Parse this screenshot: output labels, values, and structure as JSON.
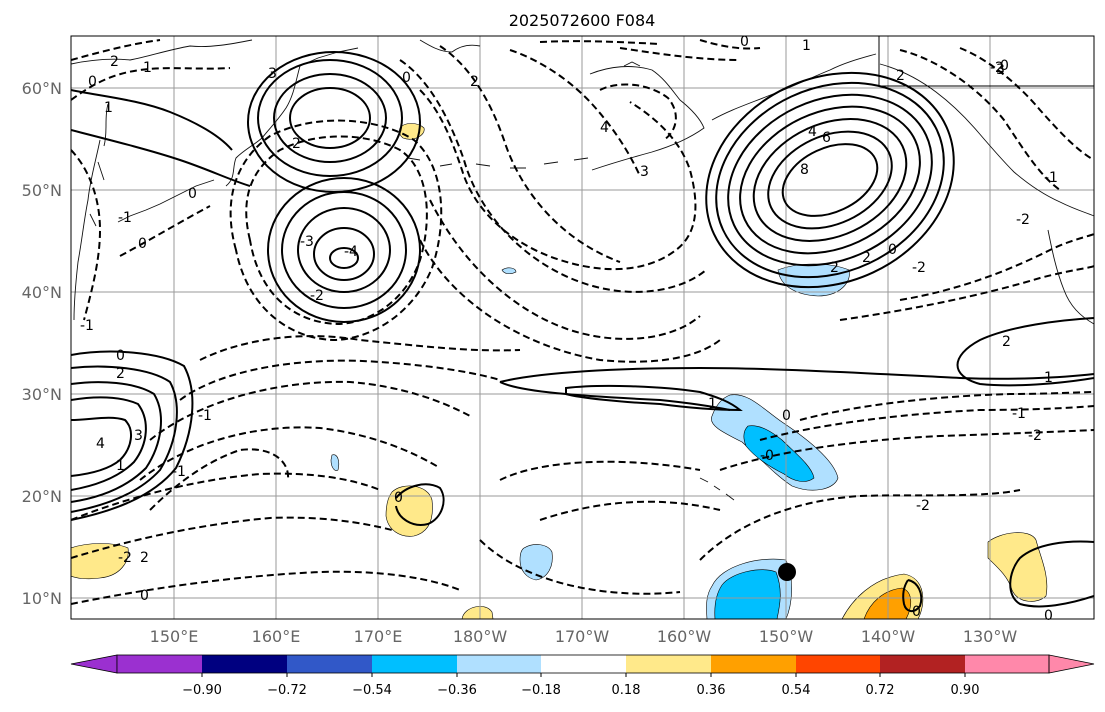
{
  "title": "2025072600 F084",
  "lat_labels": [
    "60°N",
    "50°N",
    "40°N",
    "30°N",
    "20°N",
    "10°N"
  ],
  "lon_labels": [
    "150°E",
    "160°E",
    "170°E",
    "180°W",
    "170°W",
    "160°W",
    "150°W",
    "140°W",
    "130°W"
  ],
  "colorbar": {
    "tick_labels": [
      "−0.90",
      "−0.72",
      "−0.54",
      "−0.36",
      "−0.18",
      "0.18",
      "0.36",
      "0.54",
      "0.72",
      "0.90"
    ],
    "colors": [
      "#9b30d0",
      "#000080",
      "#3158c8",
      "#00bfff",
      "#b0e0ff",
      "#ffffff",
      "#ffe98a",
      "#ffa000",
      "#ff4500",
      "#b22222",
      "#ff88aa"
    ]
  },
  "contour_labels": {
    "nw_a": "2",
    "nw_b": "1",
    "nw_c": "0",
    "nw_d": "1",
    "nw_e": "0",
    "low1_a": "3",
    "low1_b": "2",
    "low1_c": "0",
    "cen_a": "-3",
    "cen_b": "-4",
    "cen_c": "-2",
    "l_w1": "0",
    "l_w2": "-1",
    "l_w3": "-1",
    "l_w4": "-1",
    "mw_a": "0",
    "mw_b": "2",
    "mw_c": "3",
    "mw_d": "4",
    "mw_e": "1",
    "mw_f": "-1",
    "mw_g": "2",
    "mw_h": "-2",
    "mw_i": "0",
    "top_a": "0",
    "top_b": "2",
    "top_c": "4",
    "top_d": "3",
    "gulf_a": "1",
    "gulf_b": "2",
    "high_a": "4",
    "high_b": "6",
    "high_c": "8",
    "high_d": "2",
    "high_e": "2",
    "high_f": "0",
    "high_g": "-2",
    "ne_a": "0",
    "ne_b": "-2",
    "ne_c": "3",
    "ne_d": "-2",
    "ne_e": "-1",
    "e_a": "2",
    "e_b": "1",
    "e_c": "-1",
    "e_d": "-2",
    "j_a": "1",
    "j_b": "0",
    "j_c": "-0",
    "se_a": "-2",
    "s_a": "0",
    "s_b": "0",
    "s_c": "0"
  },
  "marker": "black-dot"
}
